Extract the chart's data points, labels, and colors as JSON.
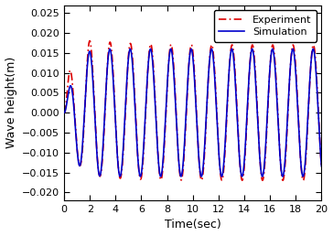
{
  "title": "",
  "xlabel": "Time(sec)",
  "ylabel": "Wave height(m)",
  "xlim": [
    0,
    20
  ],
  "ylim": [
    -0.022,
    0.027
  ],
  "xticks": [
    0,
    2,
    4,
    6,
    8,
    10,
    12,
    14,
    16,
    18,
    20
  ],
  "yticks": [
    -0.02,
    -0.015,
    -0.01,
    -0.005,
    0,
    0.005,
    0.01,
    0.015,
    0.02,
    0.025
  ],
  "period": 1.58,
  "A_steady_sim": 0.016,
  "A_steady_exp": 0.017,
  "sim_color": "#0000CC",
  "exp_color": "#DD0000",
  "background_color": "#FFFFFF",
  "legend_labels": [
    "Simulation",
    "Experiment"
  ],
  "figsize": [
    3.64,
    2.58
  ],
  "dpi": 100
}
